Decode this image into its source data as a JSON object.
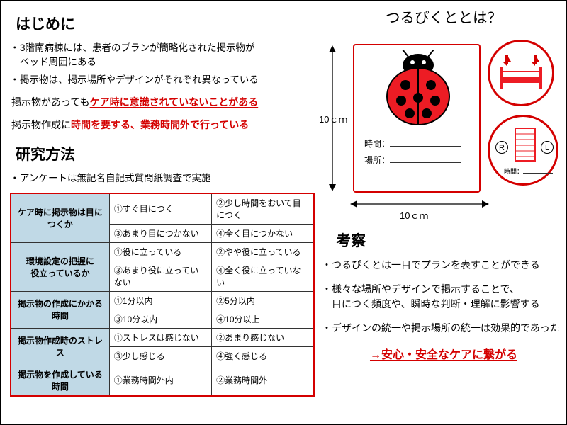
{
  "left": {
    "intro_heading": "はじめに",
    "intro_bullets": [
      "3階南病棟には、患者のプランが簡略化された掲示物が\n ベッド周囲にある",
      "掲示物は、掲示場所やデザインがそれぞれ異なっている"
    ],
    "statement1_pre": "掲示物があっても",
    "statement1_em": "ケア時に意識されていないことがある",
    "statement2_pre": "掲示物作成に",
    "statement2_em": "時間を要する、業務時間外で行っている",
    "method_heading": "研究方法",
    "method_bullet": "アンケートは無記名自記式質問紙調査で実施",
    "table": {
      "rows": [
        {
          "header": "ケア時に掲示物は目につくか",
          "cells": [
            [
              "①すぐ目につく",
              "②少し時間をおいて目につく"
            ],
            [
              "③あまり目につかない",
              "④全く目につかない"
            ]
          ]
        },
        {
          "header": "環境設定の把握に\n役立っているか",
          "cells": [
            [
              "①役に立っている",
              "②やや役に立っている"
            ],
            [
              "③あまり役に立っていない",
              "④全く役に立っていない"
            ]
          ]
        },
        {
          "header": "掲示物の作成にかかる時間",
          "cells": [
            [
              "①1分以内",
              "②5分以内"
            ],
            [
              "③10分以内",
              "④10分以上"
            ]
          ]
        },
        {
          "header": "掲示物作成時のストレス",
          "cells": [
            [
              "①ストレスは感じない",
              "②あまり感じない"
            ],
            [
              "③少し感じる",
              "④強く感じる"
            ]
          ]
        },
        {
          "header": "掲示物を作成している時間",
          "cells": [
            [
              "①業務時間外内",
              "②業務時間外"
            ]
          ]
        }
      ]
    }
  },
  "right": {
    "title": "つるぴくととは？",
    "dim_v": "10ｃｍ",
    "dim_h": "10ｃｍ",
    "card_labels": {
      "time": "時間：",
      "place": "場所："
    },
    "rl": {
      "r": "R",
      "l": "L",
      "time": "時間："
    },
    "kousatsu_heading": "考察",
    "kousatsu_bullets": [
      "つるぴくとは一目でプランを表すことができる",
      "様々な場所やデザインで掲示することで、\n目につく頻度や、瞬時な判断・理解に影響する",
      "デザインの統一や掲示場所の統一は効果的であった"
    ],
    "conclusion_arrow": "→",
    "conclusion": "安心・安全なケアに繋がる"
  },
  "colors": {
    "accent": "#d40000",
    "table_header": "#c0d9e6",
    "ladybug": "#ed1c24"
  }
}
